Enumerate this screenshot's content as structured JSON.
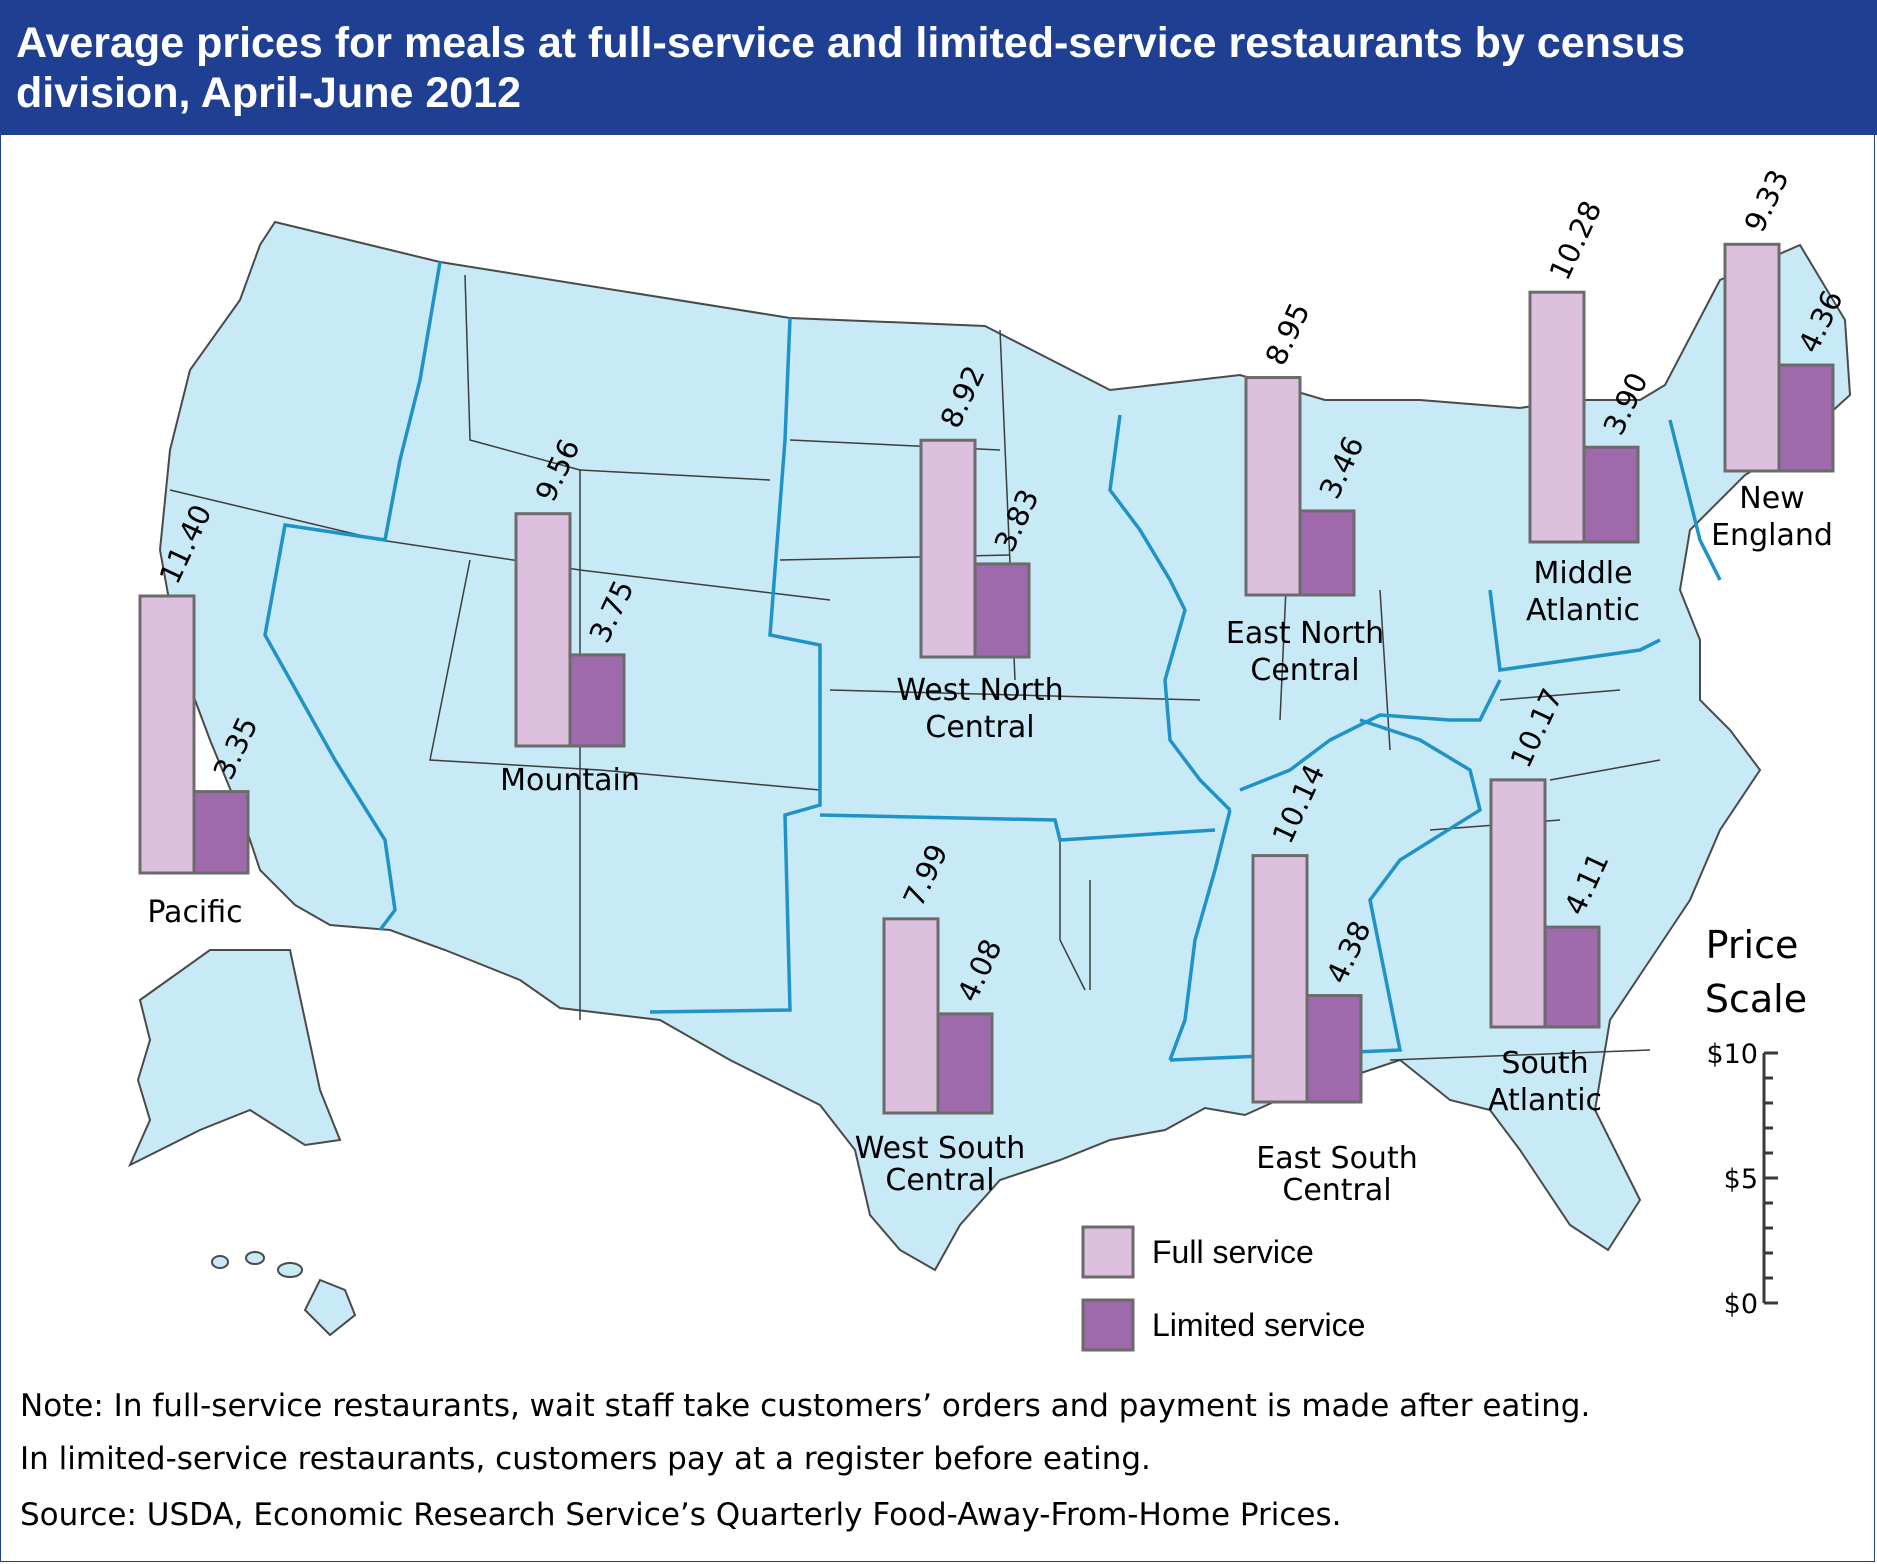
{
  "title": "Average prices for meals at full-service and limited-service restaurants by census division, April-June 2012",
  "colors": {
    "title_bar": "#1f3f93",
    "land": "#c8e9f6",
    "division_border": "#1f93c8",
    "full_service": "#dcc0dd",
    "limited_service": "#9e6aab",
    "bar_outline": "#6b6b6b"
  },
  "legend": {
    "full_label": "Full service",
    "limited_label": "Limited service"
  },
  "scale": {
    "title_line1": "Price",
    "title_line2": "Scale",
    "ticks": [
      "$10",
      "$5",
      "$0"
    ]
  },
  "chart_data": {
    "type": "bar",
    "title": "Average prices for meals at full-service and limited-service restaurants by census division, April-June 2012",
    "unit": "$",
    "ylim": [
      0,
      10
    ],
    "series_names": [
      "Full service",
      "Limited service"
    ],
    "divisions": [
      {
        "name": "Pacific",
        "full": 11.4,
        "limited": 3.35,
        "full_text": "11.40",
        "limited_text": "3.35"
      },
      {
        "name": "Mountain",
        "full": 9.56,
        "limited": 3.75,
        "full_text": "9.56",
        "limited_text": "3.75"
      },
      {
        "name": "West North Central",
        "full": 8.92,
        "limited": 3.83,
        "full_text": "8.92",
        "limited_text": "3.83"
      },
      {
        "name": "East North Central",
        "full": 8.95,
        "limited": 3.46,
        "full_text": "8.95",
        "limited_text": "3.46"
      },
      {
        "name": "Middle Atlantic",
        "full": 10.28,
        "limited": 3.9,
        "full_text": "10.28",
        "limited_text": "3.90"
      },
      {
        "name": "New England",
        "full": 9.33,
        "limited": 4.36,
        "full_text": "9.33",
        "limited_text": "4.36"
      },
      {
        "name": "West South Central",
        "full": 7.99,
        "limited": 4.08,
        "full_text": "7.99",
        "limited_text": "4.08"
      },
      {
        "name": "East South Central",
        "full": 10.14,
        "limited": 4.38,
        "full_text": "10.14",
        "limited_text": "4.38"
      },
      {
        "name": "South Atlantic",
        "full": 10.17,
        "limited": 4.11,
        "full_text": "10.17",
        "limited_text": "4.11"
      }
    ]
  },
  "labels": {
    "pacific": "Pacific",
    "mountain": "Mountain",
    "wnc_1": "West North",
    "wnc_2": "Central",
    "enc_1": "East North",
    "enc_2": "Central",
    "ma_1": "Middle",
    "ma_2": "Atlantic",
    "ne_1": "New",
    "ne_2": "England",
    "wsc_1": "West South",
    "wsc_2": "Central",
    "esc_1": "East South",
    "esc_2": "Central",
    "sa_1": "South",
    "sa_2": "Atlantic"
  },
  "note_line1": "Note: In full-service restaurants, wait staff take customers’ orders and payment is made after eating.",
  "note_line2": "In limited-service restaurants, customers pay at a register before eating.",
  "source": "Source: USDA, Economic Research Service’s Quarterly Food-Away-From-Home Prices."
}
